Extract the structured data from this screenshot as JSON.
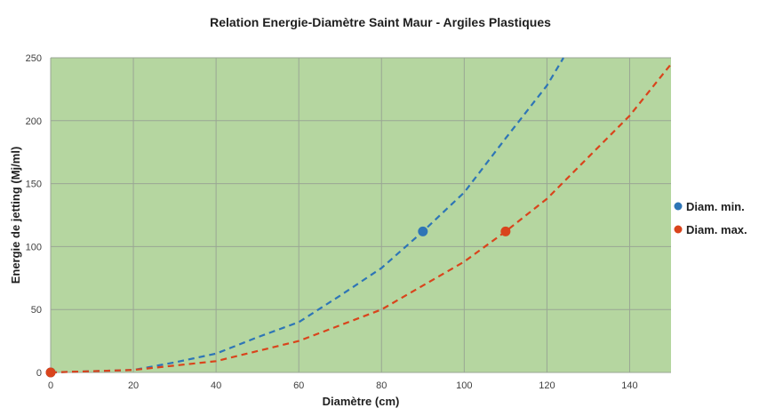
{
  "chart_data": {
    "type": "line",
    "title": "Relation Energie-Diamètre Saint Maur - Argiles Plastiques",
    "xlabel": "Diamètre (cm)",
    "ylabel": "Energie de jetting (Mj/ml)",
    "xlim": [
      0,
      150
    ],
    "ylim": [
      0,
      250
    ],
    "xticks": [
      "0",
      "20",
      "40",
      "60",
      "80",
      "100",
      "120",
      "140"
    ],
    "yticks": [
      "0",
      "50",
      "100",
      "150",
      "200",
      "250"
    ],
    "grid": true,
    "legend_position": "right",
    "plot_background": "#b5d6a0",
    "series": [
      {
        "name": "Diam. min.",
        "color": "#2e75b6",
        "line_style": "dashed",
        "x": [
          0,
          10,
          20,
          30,
          40,
          50,
          60,
          70,
          80,
          90,
          100,
          110,
          120,
          124
        ],
        "y": [
          0,
          1,
          2,
          8,
          15,
          28,
          40,
          61,
          83,
          112,
          143,
          186,
          228,
          250
        ]
      },
      {
        "name": "Diam. max.",
        "color": "#d9441c",
        "line_style": "dashed",
        "x": [
          0,
          20,
          40,
          60,
          80,
          100,
          110,
          120,
          140,
          150
        ],
        "y": [
          0,
          2,
          9,
          25,
          50,
          88,
          112,
          138,
          204,
          245
        ]
      }
    ],
    "markers": [
      {
        "series": "Diam. min.",
        "x": 0,
        "y": 0
      },
      {
        "series": "Diam. min.",
        "x": 90,
        "y": 112
      },
      {
        "series": "Diam. max.",
        "x": 0,
        "y": 0
      },
      {
        "series": "Diam. max.",
        "x": 110,
        "y": 112
      }
    ]
  }
}
